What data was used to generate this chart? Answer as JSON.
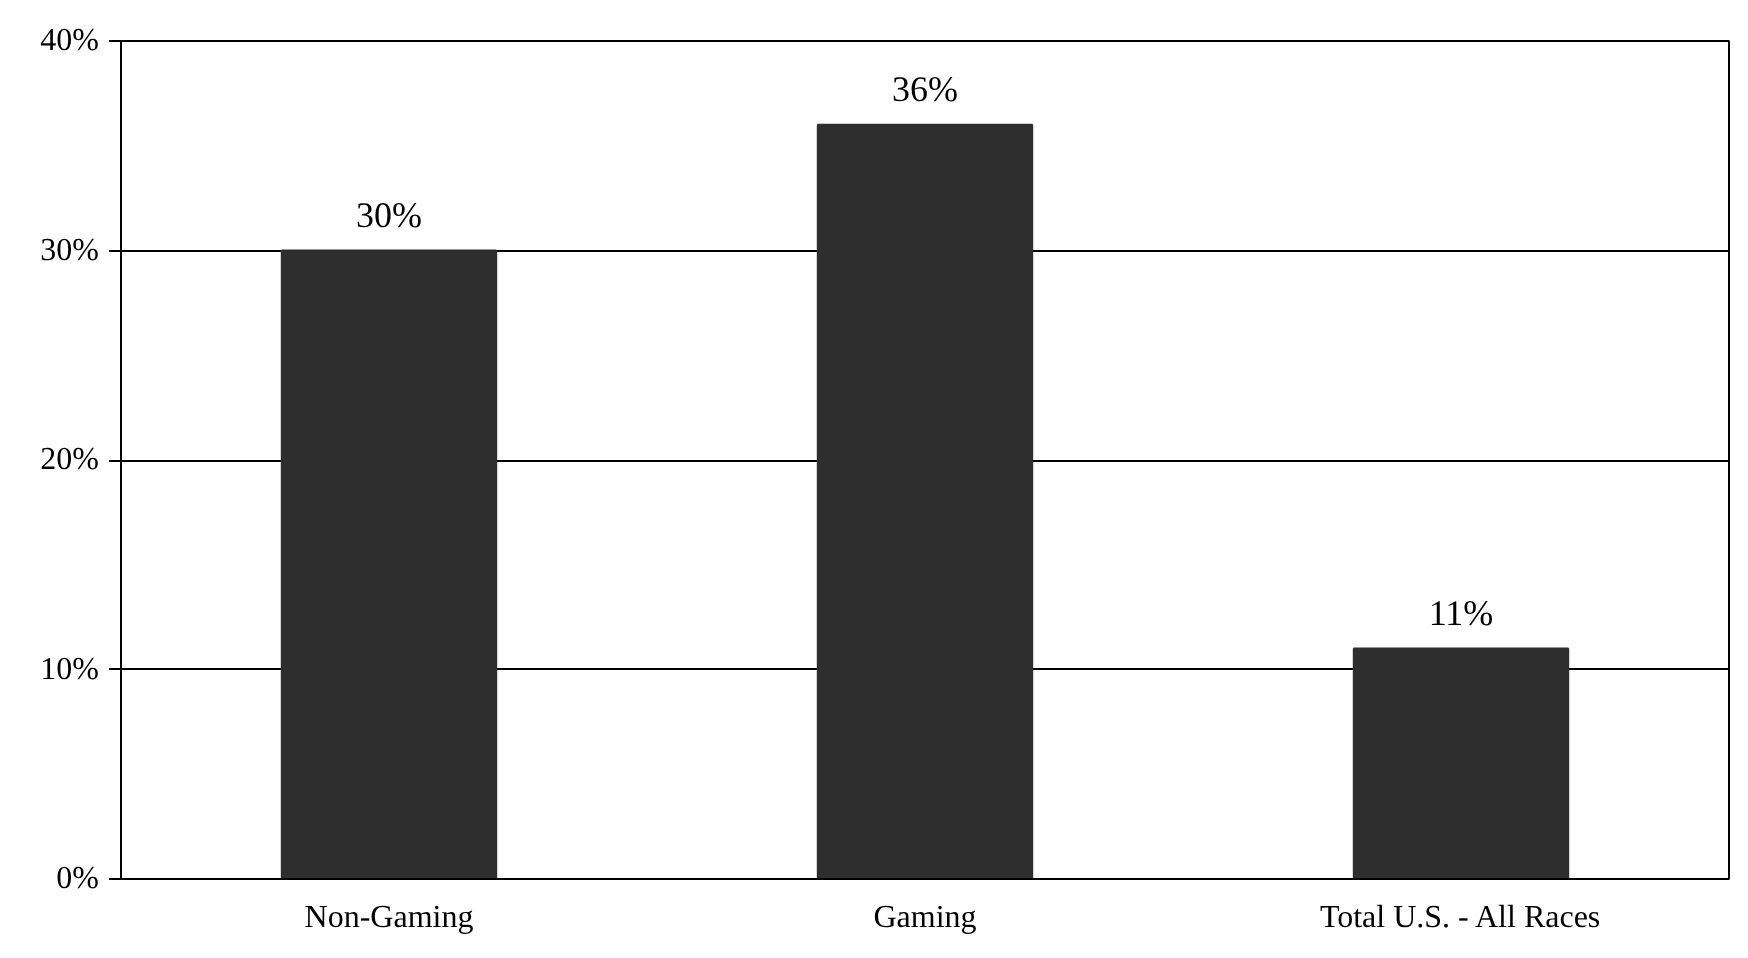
{
  "chart_data": {
    "type": "bar",
    "categories": [
      "Non-Gaming",
      "Gaming",
      "Total U.S. - All Races"
    ],
    "values": [
      30,
      36,
      11
    ],
    "value_labels": [
      "30%",
      "36%",
      "11%"
    ],
    "color": "#2e2e2e",
    "ylim": [
      0,
      40
    ],
    "yticks": [
      {
        "value": 0,
        "label": "0%"
      },
      {
        "value": 10,
        "label": "10%"
      },
      {
        "value": 20,
        "label": "20%"
      },
      {
        "value": 30,
        "label": "30%"
      },
      {
        "value": 40,
        "label": "40%"
      }
    ],
    "grid": "y"
  }
}
